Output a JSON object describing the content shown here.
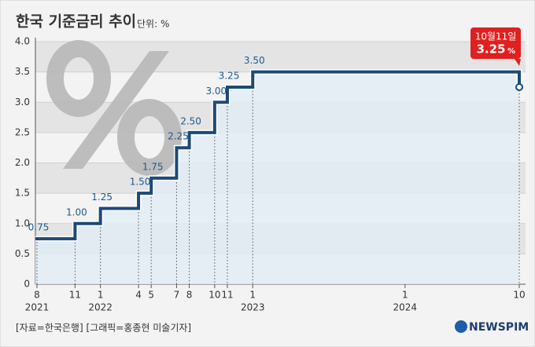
{
  "chart_data": {
    "type": "step",
    "title": "한국 기준금리 추이",
    "unit_label": "단위: %",
    "x": [
      "2021-08",
      "2021-11",
      "2022-01",
      "2022-04",
      "2022-05",
      "2022-07",
      "2022-08",
      "2022-10",
      "2022-11",
      "2023-01",
      "2024-10"
    ],
    "values": [
      0.75,
      1.0,
      1.25,
      1.5,
      1.75,
      2.25,
      2.5,
      3.0,
      3.25,
      3.5,
      3.25
    ],
    "value_labels": [
      "0.75",
      "1.00",
      "1.25",
      "1.50",
      "1.75",
      "2.25",
      "2.50",
      "3.00",
      "3.25",
      "3.50",
      "3.25"
    ],
    "color": "#1b4a78",
    "area_color": "#e3ecf5",
    "xlim": [
      "2021-08",
      "2024-10"
    ],
    "xticks": [
      {
        "value": "2021-08",
        "label": "8"
      },
      {
        "value": "2021-11",
        "label": "11"
      },
      {
        "value": "2022-01",
        "label": "1"
      },
      {
        "value": "2022-04",
        "label": "4"
      },
      {
        "value": "2022-05",
        "label": "5"
      },
      {
        "value": "2022-07",
        "label": "7"
      },
      {
        "value": "2022-08",
        "label": "8"
      },
      {
        "value": "2022-10",
        "label": "10"
      },
      {
        "value": "2022-11",
        "label": "11"
      },
      {
        "value": "2023-01",
        "label": "1"
      },
      {
        "value": "2024-01",
        "label": "1"
      },
      {
        "value": "2024-10",
        "label": "10"
      }
    ],
    "x_year_labels": [
      {
        "value": "2021-08",
        "label": "2021"
      },
      {
        "value": "2022-01",
        "label": "2022"
      },
      {
        "value": "2023-01",
        "label": "2023"
      },
      {
        "value": "2024-01",
        "label": "2024"
      }
    ],
    "ylim": [
      0,
      4.0
    ],
    "yticks": [
      0,
      0.5,
      {
        "value": 1,
        "label": "1.0"
      },
      1.5,
      {
        "value": 2,
        "label": "2.0"
      },
      2.5,
      {
        "value": 3,
        "label": "3.0"
      },
      3.5,
      {
        "value": 4,
        "label": "4.0"
      }
    ],
    "grid": true,
    "annotation": {
      "date": "10월11일",
      "unit": "%"
    },
    "source": "[자료=한국은행] [그래픽=홍종현 미술기자]",
    "logo": "NEWSPIM"
  }
}
